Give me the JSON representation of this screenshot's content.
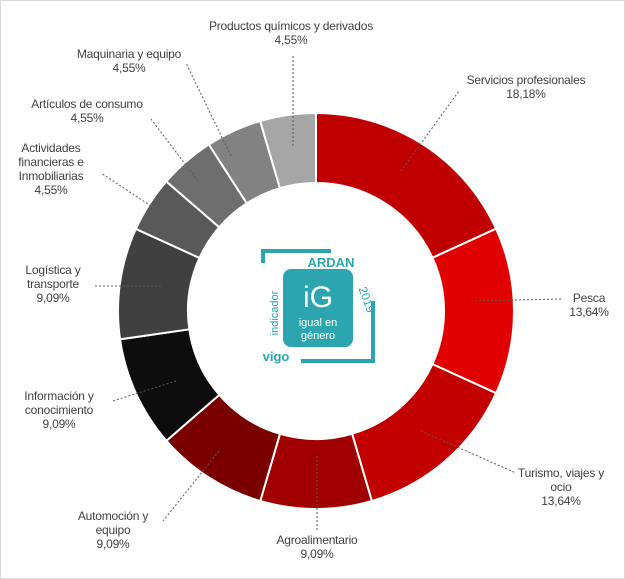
{
  "chart_data": {
    "type": "donut",
    "categories": [
      "Servicios profesionales",
      "Pesca",
      "Turismo, viajes y ocio",
      "Agroalimentario",
      "Automoción y equipo",
      "Información y conocimiento",
      "Logística y transporte",
      "Actividades financieras e Inmobiliarias",
      "Artículos de consumo",
      "Maquinaria y equipo",
      "Productos químicos y derivados"
    ],
    "values": [
      18.18,
      13.64,
      13.64,
      9.09,
      9.09,
      9.09,
      9.09,
      4.55,
      4.55,
      4.55,
      4.55
    ],
    "value_labels": [
      "18,18%",
      "13,64%",
      "13,64%",
      "9,09%",
      "9,09%",
      "9,09%",
      "9,09%",
      "4,55%",
      "4,55%",
      "4,55%",
      "4,55%"
    ],
    "colors": [
      "#c00000",
      "#e00000",
      "#c20000",
      "#a00000",
      "#7a0000",
      "#0d0d0d",
      "#404040",
      "#595959",
      "#6e6e6e",
      "#828282",
      "#a6a6a6"
    ]
  },
  "logo": {
    "top": "indicador",
    "brand": "ARDAN",
    "year": "2019",
    "mark": "iG",
    "line1": "igual en",
    "line2": "género",
    "city": "vigo"
  }
}
